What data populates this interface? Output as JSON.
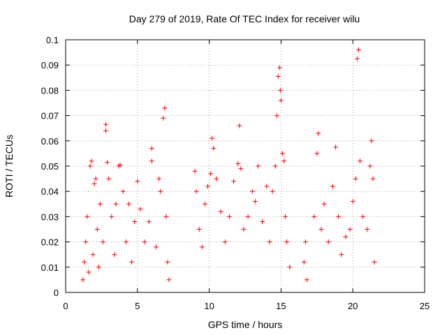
{
  "chart_data": {
    "type": "scatter",
    "title": "Day 279 of 2019, Rate Of TEC Index for receiver wilu",
    "xlabel": "GPS time / hours",
    "ylabel": "ROTI / TECUs",
    "xlim": [
      0,
      25
    ],
    "ylim": [
      0,
      0.1
    ],
    "x_ticks": [
      0,
      5,
      10,
      15,
      20,
      25
    ],
    "y_ticks": [
      0,
      0.01,
      0.02,
      0.03,
      0.04,
      0.05,
      0.06,
      0.07,
      0.08,
      0.09,
      0.1
    ],
    "grid": true,
    "marker": "plus",
    "color": "#ff0000",
    "series": [
      {
        "points": [
          [
            1.2,
            0.005
          ],
          [
            1.3,
            0.012
          ],
          [
            1.4,
            0.02
          ],
          [
            1.5,
            0.03
          ],
          [
            1.6,
            0.008
          ],
          [
            1.7,
            0.05
          ],
          [
            1.8,
            0.052
          ],
          [
            1.9,
            0.015
          ],
          [
            2.0,
            0.043
          ],
          [
            2.1,
            0.045
          ],
          [
            2.2,
            0.025
          ],
          [
            2.3,
            0.01
          ],
          [
            2.4,
            0.035
          ],
          [
            2.6,
            0.02
          ],
          [
            2.8,
            0.0665
          ],
          [
            2.8,
            0.064
          ],
          [
            2.9,
            0.0515
          ],
          [
            3.0,
            0.045
          ],
          [
            3.2,
            0.03
          ],
          [
            3.4,
            0.015
          ],
          [
            3.5,
            0.035
          ],
          [
            3.7,
            0.05
          ],
          [
            3.8,
            0.0505
          ],
          [
            4.0,
            0.04
          ],
          [
            4.2,
            0.02
          ],
          [
            4.4,
            0.035
          ],
          [
            4.6,
            0.012
          ],
          [
            4.8,
            0.028
          ],
          [
            5.0,
            0.044
          ],
          [
            5.2,
            0.033
          ],
          [
            5.5,
            0.02
          ],
          [
            5.8,
            0.028
          ],
          [
            6.0,
            0.057
          ],
          [
            6.0,
            0.052
          ],
          [
            6.3,
            0.018
          ],
          [
            6.5,
            0.045
          ],
          [
            6.6,
            0.04
          ],
          [
            6.8,
            0.069
          ],
          [
            6.9,
            0.073
          ],
          [
            7.0,
            0.03
          ],
          [
            7.1,
            0.012
          ],
          [
            7.2,
            0.005
          ],
          [
            9.0,
            0.048
          ],
          [
            9.1,
            0.04
          ],
          [
            9.3,
            0.025
          ],
          [
            9.5,
            0.018
          ],
          [
            9.7,
            0.035
          ],
          [
            9.9,
            0.042
          ],
          [
            10.1,
            0.047
          ],
          [
            10.2,
            0.061
          ],
          [
            10.3,
            0.057
          ],
          [
            10.5,
            0.045
          ],
          [
            10.8,
            0.032
          ],
          [
            11.1,
            0.02
          ],
          [
            11.4,
            0.03
          ],
          [
            11.7,
            0.044
          ],
          [
            12.0,
            0.051
          ],
          [
            12.1,
            0.066
          ],
          [
            12.2,
            0.049
          ],
          [
            12.4,
            0.025
          ],
          [
            12.7,
            0.03
          ],
          [
            13.0,
            0.04
          ],
          [
            13.2,
            0.036
          ],
          [
            13.4,
            0.05
          ],
          [
            13.7,
            0.028
          ],
          [
            14.0,
            0.042
          ],
          [
            14.2,
            0.02
          ],
          [
            14.4,
            0.04
          ],
          [
            14.6,
            0.05
          ],
          [
            14.7,
            0.07
          ],
          [
            14.8,
            0.0855
          ],
          [
            14.9,
            0.089
          ],
          [
            14.95,
            0.08
          ],
          [
            15.0,
            0.076
          ],
          [
            15.1,
            0.055
          ],
          [
            15.2,
            0.052
          ],
          [
            15.3,
            0.03
          ],
          [
            15.4,
            0.02
          ],
          [
            15.6,
            0.01
          ],
          [
            16.6,
            0.012
          ],
          [
            16.7,
            0.02
          ],
          [
            16.8,
            0.005
          ],
          [
            17.3,
            0.03
          ],
          [
            17.5,
            0.055
          ],
          [
            17.6,
            0.063
          ],
          [
            17.8,
            0.025
          ],
          [
            18.0,
            0.035
          ],
          [
            18.3,
            0.02
          ],
          [
            18.6,
            0.042
          ],
          [
            18.8,
            0.0575
          ],
          [
            19.0,
            0.03
          ],
          [
            19.2,
            0.015
          ],
          [
            19.5,
            0.022
          ],
          [
            19.8,
            0.025
          ],
          [
            20.0,
            0.036
          ],
          [
            20.2,
            0.045
          ],
          [
            20.3,
            0.0925
          ],
          [
            20.4,
            0.096
          ],
          [
            20.5,
            0.052
          ],
          [
            20.7,
            0.03
          ],
          [
            21.0,
            0.025
          ],
          [
            21.2,
            0.05
          ],
          [
            21.3,
            0.06
          ],
          [
            21.4,
            0.045
          ],
          [
            21.5,
            0.012
          ]
        ]
      }
    ]
  }
}
